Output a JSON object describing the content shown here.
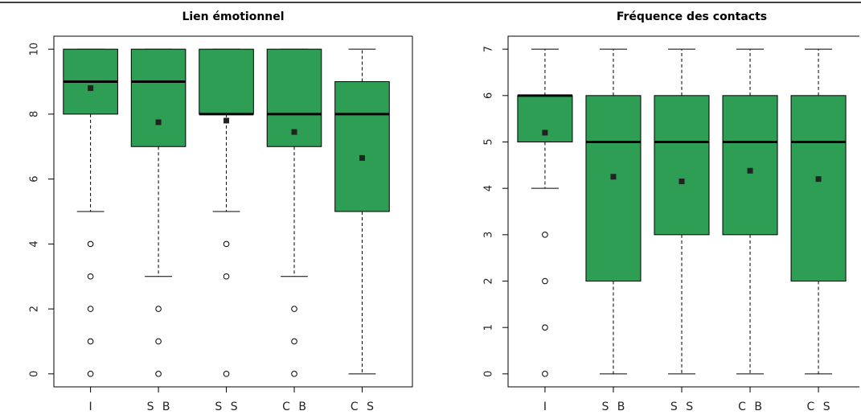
{
  "chart_data": [
    {
      "type": "box",
      "title": "Lien émotionnel",
      "color": "#2e9e55",
      "categories": [
        "I",
        "S B",
        "S S",
        "C B",
        "C S"
      ],
      "ylim": [
        -0.4,
        10.4
      ],
      "yticks": [
        0,
        2,
        4,
        6,
        8,
        10
      ],
      "boxes": [
        {
          "whisker_low": 5,
          "q1": 8,
          "median": 9,
          "q3": 10,
          "whisker_high": 10,
          "mean": 8.8,
          "outliers": [
            0,
            1,
            2,
            3,
            4
          ]
        },
        {
          "whisker_low": 3,
          "q1": 7,
          "median": 9,
          "q3": 10,
          "whisker_high": 10,
          "mean": 7.75,
          "outliers": [
            0,
            1,
            2
          ]
        },
        {
          "whisker_low": 5,
          "q1": 8,
          "median": 8,
          "q3": 10,
          "whisker_high": 10,
          "mean": 7.8,
          "outliers": [
            0,
            3,
            4
          ]
        },
        {
          "whisker_low": 3,
          "q1": 7,
          "median": 8,
          "q3": 10,
          "whisker_high": 10,
          "mean": 7.45,
          "outliers": [
            0,
            1,
            2
          ]
        },
        {
          "whisker_low": 0,
          "q1": 5,
          "median": 8,
          "q3": 9,
          "whisker_high": 10,
          "mean": 6.65,
          "outliers": []
        }
      ]
    },
    {
      "type": "box",
      "title": "Fréquence des contacts",
      "color": "#2e9e55",
      "categories": [
        "I",
        "S B",
        "S S",
        "C B",
        "C S"
      ],
      "ylim": [
        -0.28,
        7.28
      ],
      "yticks": [
        0,
        1,
        2,
        3,
        4,
        5,
        6,
        7
      ],
      "boxes": [
        {
          "whisker_low": 4,
          "q1": 5,
          "median": 6,
          "q3": 6,
          "whisker_high": 7,
          "mean": 5.2,
          "outliers": [
            0,
            1,
            2,
            3
          ]
        },
        {
          "whisker_low": 0,
          "q1": 2,
          "median": 5,
          "q3": 6,
          "whisker_high": 7,
          "mean": 4.25,
          "outliers": []
        },
        {
          "whisker_low": 0,
          "q1": 3,
          "median": 5,
          "q3": 6,
          "whisker_high": 7,
          "mean": 4.15,
          "outliers": []
        },
        {
          "whisker_low": 0,
          "q1": 3,
          "median": 5,
          "q3": 6,
          "whisker_high": 7,
          "mean": 4.38,
          "outliers": []
        },
        {
          "whisker_low": 0,
          "q1": 2,
          "median": 5,
          "q3": 6,
          "whisker_high": 7,
          "mean": 4.2,
          "outliers": []
        }
      ]
    }
  ]
}
